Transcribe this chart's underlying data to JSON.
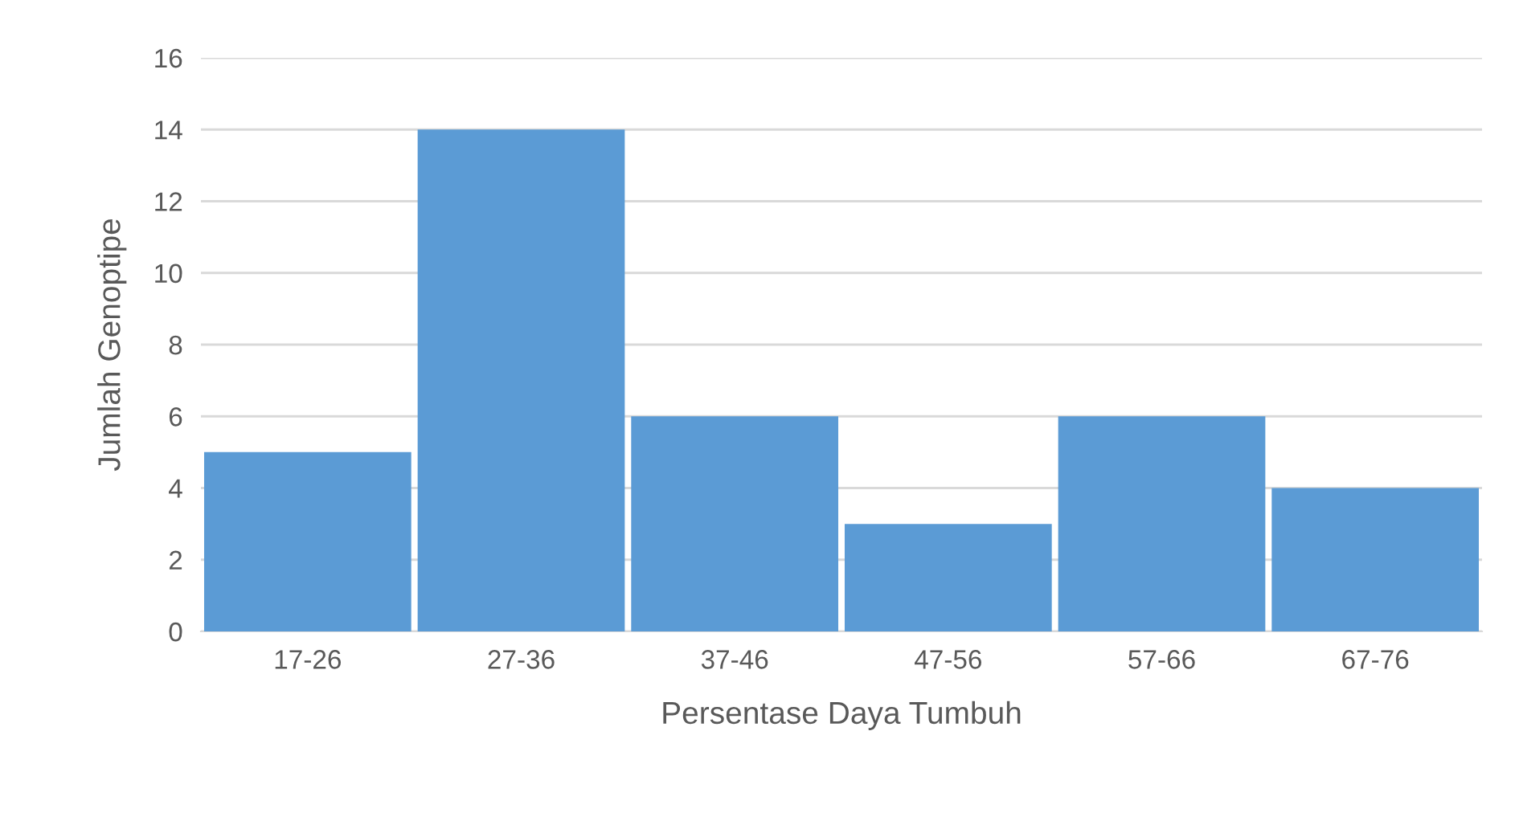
{
  "chart_data": {
    "type": "bar",
    "xlabel": "Persentase Daya Tumbuh",
    "ylabel": "Jumlah Genoptipe",
    "categories": [
      "17-26",
      "27-36",
      "37-46",
      "47-56",
      "57-66",
      "67-76"
    ],
    "values": [
      5,
      14,
      6,
      3,
      6,
      4
    ],
    "color": "#5b9bd5",
    "ylim": [
      0,
      16
    ],
    "yticks": [
      0,
      2,
      4,
      6,
      8,
      10,
      12,
      14,
      16
    ],
    "grid": "y",
    "legend": false
  }
}
